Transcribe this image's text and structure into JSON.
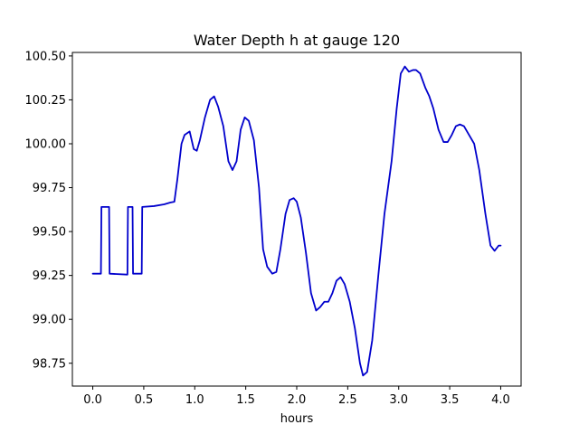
{
  "chart_data": {
    "type": "line",
    "title": "Water Depth h at gauge 120",
    "xlabel": "hours",
    "ylabel": "",
    "xlim": [
      -0.2,
      4.2
    ],
    "ylim": [
      98.62,
      100.52
    ],
    "grid": false,
    "legend": "none",
    "xticks": [
      0.0,
      0.5,
      1.0,
      1.5,
      2.0,
      2.5,
      3.0,
      3.5,
      4.0
    ],
    "xtick_labels": [
      "0.0",
      "0.5",
      "1.0",
      "1.5",
      "2.0",
      "2.5",
      "3.0",
      "3.5",
      "4.0"
    ],
    "yticks": [
      98.75,
      99.0,
      99.25,
      99.5,
      99.75,
      100.0,
      100.25,
      100.5
    ],
    "ytick_labels": [
      "98.75",
      "99.00",
      "99.25",
      "99.50",
      "99.75",
      "100.00",
      "100.25",
      "100.50"
    ],
    "series": [
      {
        "color": "#0000cc",
        "x": [
          0.0,
          0.08,
          0.085,
          0.16,
          0.165,
          0.34,
          0.345,
          0.39,
          0.395,
          0.48,
          0.485,
          0.6,
          0.7,
          0.76,
          0.8,
          0.83,
          0.87,
          0.9,
          0.95,
          0.99,
          1.02,
          1.05,
          1.1,
          1.15,
          1.19,
          1.23,
          1.28,
          1.33,
          1.37,
          1.41,
          1.45,
          1.49,
          1.53,
          1.58,
          1.63,
          1.67,
          1.71,
          1.76,
          1.8,
          1.84,
          1.89,
          1.93,
          1.97,
          2.0,
          2.04,
          2.09,
          2.14,
          2.19,
          2.23,
          2.27,
          2.31,
          2.35,
          2.39,
          2.43,
          2.47,
          2.52,
          2.57,
          2.62,
          2.65,
          2.69,
          2.74,
          2.8,
          2.86,
          2.93,
          2.98,
          3.02,
          3.06,
          3.1,
          3.14,
          3.17,
          3.21,
          3.26,
          3.3,
          3.34,
          3.39,
          3.44,
          3.48,
          3.52,
          3.56,
          3.6,
          3.64,
          3.69,
          3.74,
          3.79,
          3.85,
          3.9,
          3.94,
          3.98,
          4.0
        ],
        "y": [
          99.26,
          99.26,
          99.64,
          99.64,
          99.26,
          99.255,
          99.64,
          99.64,
          99.26,
          99.26,
          99.64,
          99.645,
          99.655,
          99.665,
          99.67,
          99.8,
          100.0,
          100.05,
          100.07,
          99.97,
          99.96,
          100.02,
          100.15,
          100.25,
          100.27,
          100.21,
          100.1,
          99.9,
          99.85,
          99.9,
          100.08,
          100.15,
          100.13,
          100.02,
          99.75,
          99.4,
          99.3,
          99.26,
          99.27,
          99.4,
          99.6,
          99.68,
          99.69,
          99.67,
          99.58,
          99.38,
          99.15,
          99.05,
          99.07,
          99.1,
          99.1,
          99.15,
          99.22,
          99.24,
          99.2,
          99.1,
          98.95,
          98.75,
          98.68,
          98.7,
          98.88,
          99.25,
          99.6,
          99.9,
          100.2,
          100.4,
          100.44,
          100.41,
          100.42,
          100.42,
          100.4,
          100.32,
          100.27,
          100.2,
          100.08,
          100.01,
          100.01,
          100.05,
          100.1,
          100.11,
          100.1,
          100.05,
          100.0,
          99.85,
          99.6,
          99.42,
          99.39,
          99.42,
          99.42
        ]
      }
    ]
  }
}
